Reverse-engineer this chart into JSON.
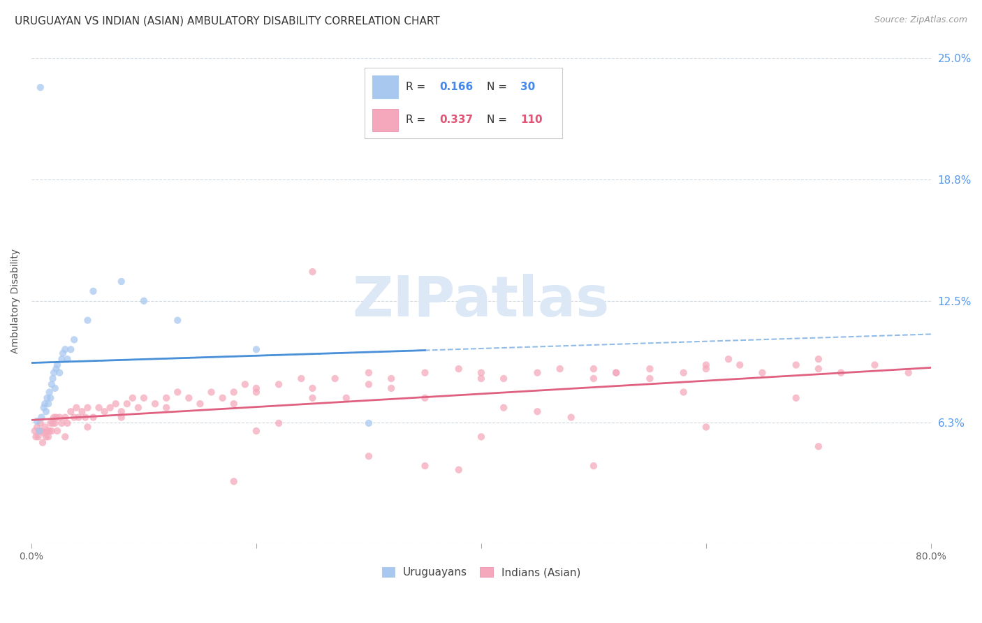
{
  "title": "URUGUAYAN VS INDIAN (ASIAN) AMBULATORY DISABILITY CORRELATION CHART",
  "source": "Source: ZipAtlas.com",
  "ylabel": "Ambulatory Disability",
  "xlim": [
    0.0,
    0.8
  ],
  "ylim": [
    0.0,
    0.25
  ],
  "yticks": [
    0.0,
    0.0625,
    0.125,
    0.1875,
    0.25
  ],
  "ytick_labels": [
    "",
    "6.3%",
    "12.5%",
    "18.8%",
    "25.0%"
  ],
  "xticks": [
    0.0,
    0.2,
    0.4,
    0.6,
    0.8
  ],
  "uruguayan_R": 0.166,
  "uruguayan_N": 30,
  "indian_R": 0.337,
  "indian_N": 110,
  "uruguayan_color": "#a8c8f0",
  "indian_color": "#f5a8bc",
  "uruguayan_line_color": "#4a90d9",
  "indian_line_color": "#e06080",
  "background_color": "#ffffff",
  "grid_color": "#d0d8e0",
  "watermark_color": "#dce8f5",
  "uruguayan_x": [
    0.005,
    0.007,
    0.009,
    0.011,
    0.012,
    0.013,
    0.014,
    0.015,
    0.016,
    0.017,
    0.018,
    0.019,
    0.02,
    0.021,
    0.022,
    0.023,
    0.025,
    0.027,
    0.028,
    0.03,
    0.032,
    0.035,
    0.038,
    0.05,
    0.055,
    0.08,
    0.1,
    0.13,
    0.2,
    0.3
  ],
  "uruguayan_y": [
    0.063,
    0.058,
    0.065,
    0.07,
    0.072,
    0.068,
    0.075,
    0.072,
    0.078,
    0.075,
    0.082,
    0.085,
    0.088,
    0.08,
    0.09,
    0.092,
    0.088,
    0.095,
    0.098,
    0.1,
    0.095,
    0.1,
    0.105,
    0.115,
    0.13,
    0.135,
    0.125,
    0.115,
    0.1,
    0.062
  ],
  "uruguayan_outlier_x": [
    0.008
  ],
  "uruguayan_outlier_y": [
    0.235
  ],
  "indian_x": [
    0.003,
    0.004,
    0.005,
    0.006,
    0.007,
    0.008,
    0.009,
    0.01,
    0.011,
    0.012,
    0.013,
    0.014,
    0.015,
    0.016,
    0.017,
    0.018,
    0.019,
    0.02,
    0.021,
    0.022,
    0.023,
    0.025,
    0.027,
    0.03,
    0.032,
    0.035,
    0.038,
    0.04,
    0.042,
    0.045,
    0.048,
    0.05,
    0.055,
    0.06,
    0.065,
    0.07,
    0.075,
    0.08,
    0.085,
    0.09,
    0.095,
    0.1,
    0.11,
    0.12,
    0.13,
    0.14,
    0.15,
    0.16,
    0.17,
    0.18,
    0.19,
    0.2,
    0.22,
    0.24,
    0.25,
    0.27,
    0.3,
    0.32,
    0.35,
    0.38,
    0.4,
    0.42,
    0.45,
    0.47,
    0.5,
    0.52,
    0.55,
    0.58,
    0.6,
    0.63,
    0.65,
    0.68,
    0.7,
    0.72,
    0.75,
    0.78,
    0.03,
    0.05,
    0.08,
    0.12,
    0.18,
    0.25,
    0.32,
    0.4,
    0.5,
    0.6,
    0.7,
    0.35,
    0.45,
    0.55,
    0.2,
    0.3,
    0.42,
    0.52,
    0.62,
    0.5,
    0.4,
    0.6,
    0.22,
    0.7,
    0.28,
    0.48,
    0.38,
    0.58,
    0.68,
    0.3,
    0.2,
    0.18,
    0.25,
    0.35
  ],
  "indian_y": [
    0.058,
    0.055,
    0.06,
    0.055,
    0.058,
    0.062,
    0.058,
    0.052,
    0.057,
    0.06,
    0.055,
    0.058,
    0.055,
    0.058,
    0.062,
    0.058,
    0.062,
    0.065,
    0.062,
    0.065,
    0.058,
    0.065,
    0.062,
    0.065,
    0.062,
    0.068,
    0.065,
    0.07,
    0.065,
    0.068,
    0.065,
    0.07,
    0.065,
    0.07,
    0.068,
    0.07,
    0.072,
    0.068,
    0.072,
    0.075,
    0.07,
    0.075,
    0.072,
    0.075,
    0.078,
    0.075,
    0.072,
    0.078,
    0.075,
    0.078,
    0.082,
    0.08,
    0.082,
    0.085,
    0.08,
    0.085,
    0.088,
    0.085,
    0.088,
    0.09,
    0.088,
    0.085,
    0.088,
    0.09,
    0.085,
    0.088,
    0.09,
    0.088,
    0.09,
    0.092,
    0.088,
    0.092,
    0.09,
    0.088,
    0.092,
    0.088,
    0.055,
    0.06,
    0.065,
    0.07,
    0.072,
    0.075,
    0.08,
    0.085,
    0.09,
    0.092,
    0.095,
    0.075,
    0.068,
    0.085,
    0.078,
    0.082,
    0.07,
    0.088,
    0.095,
    0.04,
    0.055,
    0.06,
    0.062,
    0.05,
    0.075,
    0.065,
    0.038,
    0.078,
    0.075,
    0.045,
    0.058,
    0.032,
    0.14,
    0.04
  ]
}
